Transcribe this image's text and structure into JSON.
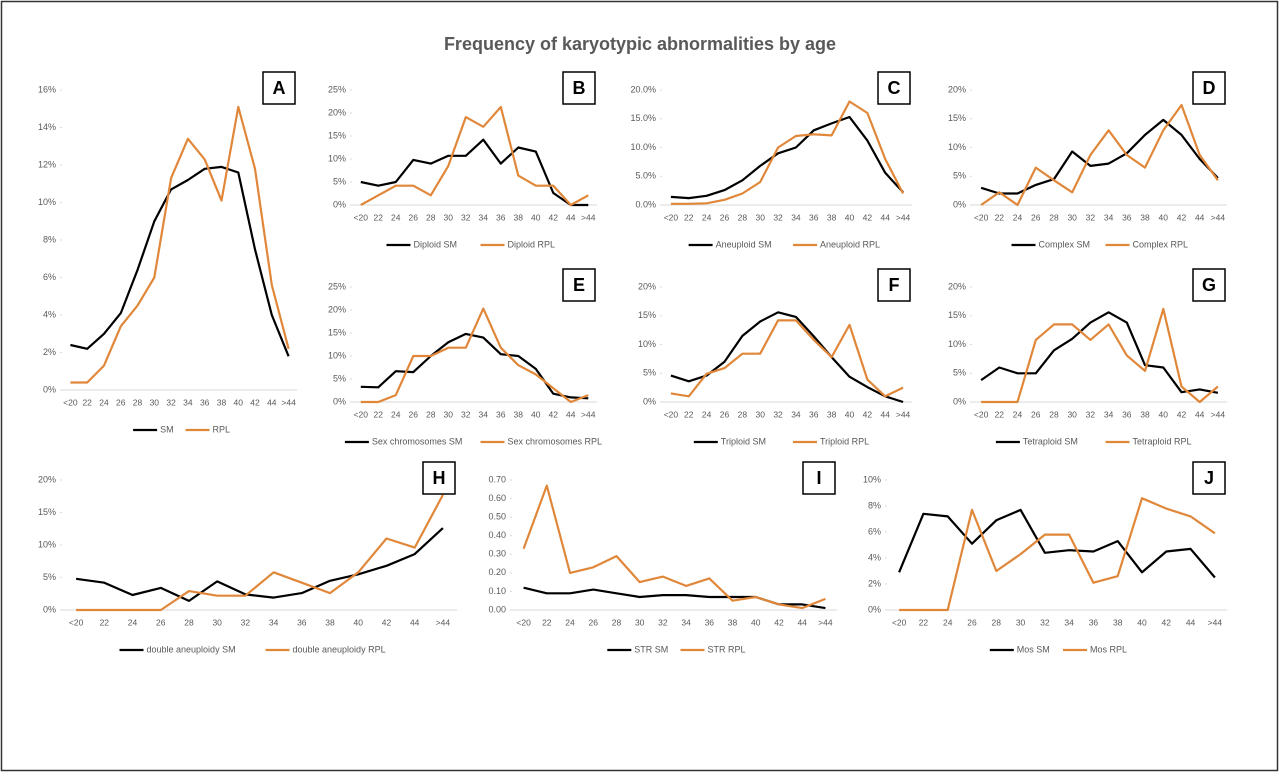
{
  "title": "Frequency of karyotypic abnormalities by age",
  "chart_data": [
    {
      "type": "line",
      "label": "A",
      "categories": [
        "<20",
        "22",
        "24",
        "26",
        "28",
        "30",
        "32",
        "34",
        "36",
        "38",
        "40",
        "42",
        "44",
        ">44"
      ],
      "series": [
        {
          "name": "SM",
          "color": "#000000",
          "values": [
            2.4,
            2.2,
            3.0,
            4.1,
            6.4,
            9.0,
            10.7,
            11.2,
            11.8,
            11.9,
            11.6,
            7.5,
            4.0,
            1.8
          ]
        },
        {
          "name": "RPL",
          "color": "#e0873a",
          "values": [
            0.4,
            0.4,
            1.3,
            3.4,
            4.5,
            6.0,
            11.3,
            13.4,
            12.3,
            10.1,
            15.1,
            11.8,
            5.6,
            2.2
          ]
        }
      ],
      "ylim": [
        0,
        16
      ],
      "yticks": [
        {
          "value": 0,
          "label": "0%"
        },
        {
          "value": 2,
          "label": "2%"
        },
        {
          "value": 4,
          "label": "4%"
        },
        {
          "value": 6,
          "label": "6%"
        },
        {
          "value": 8,
          "label": "8%"
        },
        {
          "value": 10,
          "label": "10%"
        },
        {
          "value": 12,
          "label": "12%"
        },
        {
          "value": 14,
          "label": "14%"
        },
        {
          "value": 16,
          "label": "16%"
        }
      ]
    },
    {
      "type": "line",
      "label": "B",
      "categories": [
        "<20",
        "22",
        "24",
        "26",
        "28",
        "30",
        "32",
        "34",
        "36",
        "38",
        "40",
        "42",
        "44",
        ">44"
      ],
      "series": [
        {
          "name": "Diploid SM",
          "color": "#000000",
          "values": [
            5.0,
            4.2,
            5.0,
            9.8,
            9.0,
            10.7,
            10.7,
            14.2,
            9.0,
            12.5,
            11.6,
            2.6,
            0,
            0
          ]
        },
        {
          "name": "Diploid RPL",
          "color": "#e0873a",
          "values": [
            0,
            2.1,
            4.2,
            4.2,
            2.1,
            8.5,
            19.1,
            17.0,
            21.3,
            6.4,
            4.2,
            4.2,
            0,
            2.1
          ]
        }
      ],
      "ylim": [
        0,
        25
      ],
      "yticks": [
        {
          "value": 0,
          "label": "0%"
        },
        {
          "value": 5,
          "label": "5%"
        },
        {
          "value": 10,
          "label": "10%"
        },
        {
          "value": 15,
          "label": "15%"
        },
        {
          "value": 20,
          "label": "20%"
        },
        {
          "value": 25,
          "label": "25%"
        }
      ]
    },
    {
      "type": "line",
      "label": "C",
      "categories": [
        "<20",
        "22",
        "24",
        "26",
        "28",
        "30",
        "32",
        "34",
        "36",
        "38",
        "40",
        "42",
        "44",
        ">44"
      ],
      "series": [
        {
          "name": "Aneuploid SM",
          "color": "#000000",
          "values": [
            1.4,
            1.2,
            1.6,
            2.6,
            4.3,
            6.8,
            9.0,
            10.0,
            13.0,
            14.2,
            15.3,
            11.2,
            5.6,
            2.2
          ]
        },
        {
          "name": "Aneuploid RPL",
          "color": "#e0873a",
          "values": [
            0.2,
            0.2,
            0.3,
            0.9,
            2.0,
            4.0,
            10.0,
            12.0,
            12.3,
            12.1,
            18.0,
            16.0,
            8.0,
            2.0
          ]
        }
      ],
      "ylim": [
        0,
        20
      ],
      "yticks": [
        {
          "value": 0,
          "label": "0.0%"
        },
        {
          "value": 5,
          "label": "5.0%"
        },
        {
          "value": 10,
          "label": "10.0%"
        },
        {
          "value": 15,
          "label": "15.0%"
        },
        {
          "value": 20,
          "label": "20.0%"
        }
      ]
    },
    {
      "type": "line",
      "label": "D",
      "categories": [
        "<20",
        "22",
        "24",
        "26",
        "28",
        "30",
        "32",
        "34",
        "36",
        "38",
        "40",
        "42",
        "44",
        ">44"
      ],
      "series": [
        {
          "name": "Complex SM",
          "color": "#000000",
          "values": [
            3.0,
            2.0,
            2.0,
            3.5,
            4.5,
            9.3,
            6.8,
            7.2,
            9.0,
            12.2,
            14.8,
            12.2,
            8.0,
            4.7
          ]
        },
        {
          "name": "Complex RPL",
          "color": "#e0873a",
          "values": [
            0,
            2.2,
            0,
            6.5,
            4.3,
            2.2,
            8.7,
            13.0,
            8.7,
            6.5,
            13.0,
            17.4,
            8.7,
            4.3
          ]
        }
      ],
      "ylim": [
        0,
        20
      ],
      "yticks": [
        {
          "value": 0,
          "label": "0%"
        },
        {
          "value": 5,
          "label": "5%"
        },
        {
          "value": 10,
          "label": "10%"
        },
        {
          "value": 15,
          "label": "15%"
        },
        {
          "value": 20,
          "label": "20%"
        }
      ]
    },
    {
      "type": "line",
      "label": "E",
      "categories": [
        "<20",
        "22",
        "24",
        "26",
        "28",
        "30",
        "32",
        "34",
        "36",
        "38",
        "40",
        "42",
        "44",
        ">44"
      ],
      "series": [
        {
          "name": "Sex chromosomes SM",
          "color": "#000000",
          "values": [
            3.3,
            3.2,
            6.7,
            6.5,
            10.0,
            13.0,
            14.8,
            14.0,
            10.4,
            10.0,
            7.2,
            1.8,
            1.0,
            0.8
          ]
        },
        {
          "name": "Sex chromosomes RPL",
          "color": "#e0873a",
          "values": [
            0,
            0,
            1.5,
            10,
            10,
            11.8,
            11.8,
            20.3,
            11.8,
            8.0,
            6.0,
            3.0,
            0,
            1.5
          ]
        }
      ],
      "ylim": [
        0,
        25
      ],
      "yticks": [
        {
          "value": 0,
          "label": "0%"
        },
        {
          "value": 5,
          "label": "5%"
        },
        {
          "value": 10,
          "label": "10%"
        },
        {
          "value": 15,
          "label": "15%"
        },
        {
          "value": 20,
          "label": "20%"
        },
        {
          "value": 25,
          "label": "25%"
        }
      ]
    },
    {
      "type": "line",
      "label": "F",
      "categories": [
        "<20",
        "22",
        "24",
        "26",
        "28",
        "30",
        "32",
        "34",
        "36",
        "38",
        "40",
        "42",
        "44",
        ">44"
      ],
      "series": [
        {
          "name": "Triploid SM",
          "color": "#000000",
          "values": [
            4.6,
            3.6,
            4.6,
            7.0,
            11.5,
            14.0,
            15.6,
            14.8,
            11.4,
            7.8,
            4.4,
            2.6,
            1.0,
            0
          ]
        },
        {
          "name": "Triploid RPL",
          "color": "#e0873a",
          "values": [
            1.5,
            1.0,
            4.9,
            5.9,
            8.4,
            8.4,
            14.2,
            14.2,
            10.8,
            7.8,
            13.4,
            3.9,
            1.0,
            2.5
          ]
        }
      ],
      "ylim": [
        0,
        20
      ],
      "yticks": [
        {
          "value": 0,
          "label": "0%"
        },
        {
          "value": 5,
          "label": "5%"
        },
        {
          "value": 10,
          "label": "10%"
        },
        {
          "value": 15,
          "label": "15%"
        },
        {
          "value": 20,
          "label": "20%"
        }
      ]
    },
    {
      "type": "line",
      "label": "G",
      "categories": [
        "<20",
        "22",
        "24",
        "26",
        "28",
        "30",
        "32",
        "34",
        "36",
        "38",
        "40",
        "42",
        "44",
        ">44"
      ],
      "series": [
        {
          "name": "Tetraploid SM",
          "color": "#000000",
          "values": [
            3.8,
            6.0,
            5.0,
            5.0,
            9.0,
            11.0,
            13.8,
            15.6,
            13.8,
            6.4,
            6.0,
            1.7,
            2.2,
            1.6
          ]
        },
        {
          "name": "Tetraploid RPL",
          "color": "#e0873a",
          "values": [
            0,
            0,
            0,
            10.8,
            13.5,
            13.5,
            10.8,
            13.5,
            8.1,
            5.4,
            16.2,
            2.7,
            0,
            2.7
          ]
        }
      ],
      "ylim": [
        0,
        20
      ],
      "yticks": [
        {
          "value": 0,
          "label": "0%"
        },
        {
          "value": 5,
          "label": "5%"
        },
        {
          "value": 10,
          "label": "10%"
        },
        {
          "value": 15,
          "label": "15%"
        },
        {
          "value": 20,
          "label": "20%"
        }
      ]
    },
    {
      "type": "line",
      "label": "H",
      "categories": [
        "<20",
        "22",
        "24",
        "26",
        "28",
        "30",
        "32",
        "34",
        "36",
        "38",
        "40",
        "42",
        "44",
        ">44"
      ],
      "series": [
        {
          "name": "double aneuploidy SM",
          "color": "#000000",
          "values": [
            4.8,
            4.2,
            2.3,
            3.4,
            1.4,
            4.4,
            2.4,
            1.9,
            2.6,
            4.5,
            5.5,
            6.8,
            8.6,
            12.6
          ]
        },
        {
          "name": "double aneuploidy RPL",
          "color": "#e0873a",
          "values": [
            0,
            0,
            0,
            0,
            2.9,
            2.2,
            2.2,
            5.8,
            4.2,
            2.6,
            5.8,
            11.0,
            9.6,
            17.7
          ]
        }
      ],
      "ylim": [
        0,
        20
      ],
      "yticks": [
        {
          "value": 0,
          "label": "0%"
        },
        {
          "value": 5,
          "label": "5%"
        },
        {
          "value": 10,
          "label": "10%"
        },
        {
          "value": 15,
          "label": "15%"
        },
        {
          "value": 20,
          "label": "20%"
        }
      ]
    },
    {
      "type": "line",
      "label": "I",
      "categories": [
        "<20",
        "22",
        "24",
        "26",
        "28",
        "30",
        "32",
        "34",
        "36",
        "38",
        "40",
        "42",
        "44",
        ">44"
      ],
      "series": [
        {
          "name": "STR SM",
          "color": "#000000",
          "values": [
            0.12,
            0.09,
            0.09,
            0.11,
            0.09,
            0.07,
            0.08,
            0.08,
            0.07,
            0.07,
            0.07,
            0.03,
            0.03,
            0.01
          ]
        },
        {
          "name": "STR RPL",
          "color": "#e0873a",
          "values": [
            0.33,
            0.67,
            0.2,
            0.23,
            0.29,
            0.15,
            0.18,
            0.13,
            0.17,
            0.05,
            0.07,
            0.03,
            0.01,
            0.06
          ]
        }
      ],
      "ylim": [
        0,
        0.7
      ],
      "yticks": [
        {
          "value": 0,
          "label": "0.00"
        },
        {
          "value": 0.1,
          "label": "0.10"
        },
        {
          "value": 0.2,
          "label": "0.20"
        },
        {
          "value": 0.3,
          "label": "0.30"
        },
        {
          "value": 0.4,
          "label": "0.40"
        },
        {
          "value": 0.5,
          "label": "0.50"
        },
        {
          "value": 0.6,
          "label": "0.60"
        },
        {
          "value": 0.7,
          "label": "0.70"
        }
      ]
    },
    {
      "type": "line",
      "label": "J",
      "categories": [
        "<20",
        "22",
        "24",
        "26",
        "28",
        "30",
        "32",
        "34",
        "36",
        "38",
        "40",
        "42",
        "44",
        ">44"
      ],
      "series": [
        {
          "name": "Mos SM",
          "color": "#000000",
          "values": [
            2.9,
            7.4,
            7.2,
            5.1,
            6.9,
            7.7,
            4.4,
            4.6,
            4.5,
            5.3,
            2.9,
            4.5,
            4.7,
            2.5
          ]
        },
        {
          "name": "Mos RPL",
          "color": "#e0873a",
          "values": [
            0,
            0,
            0,
            7.7,
            3.0,
            4.3,
            5.8,
            5.8,
            2.1,
            2.6,
            8.6,
            7.8,
            7.2,
            5.9
          ]
        }
      ],
      "ylim": [
        0,
        10
      ],
      "yticks": [
        {
          "value": 0,
          "label": "0%"
        },
        {
          "value": 2,
          "label": "2%"
        },
        {
          "value": 4,
          "label": "4%"
        },
        {
          "value": 6,
          "label": "6%"
        },
        {
          "value": 8,
          "label": "8%"
        },
        {
          "value": 10,
          "label": "10%"
        }
      ]
    }
  ]
}
